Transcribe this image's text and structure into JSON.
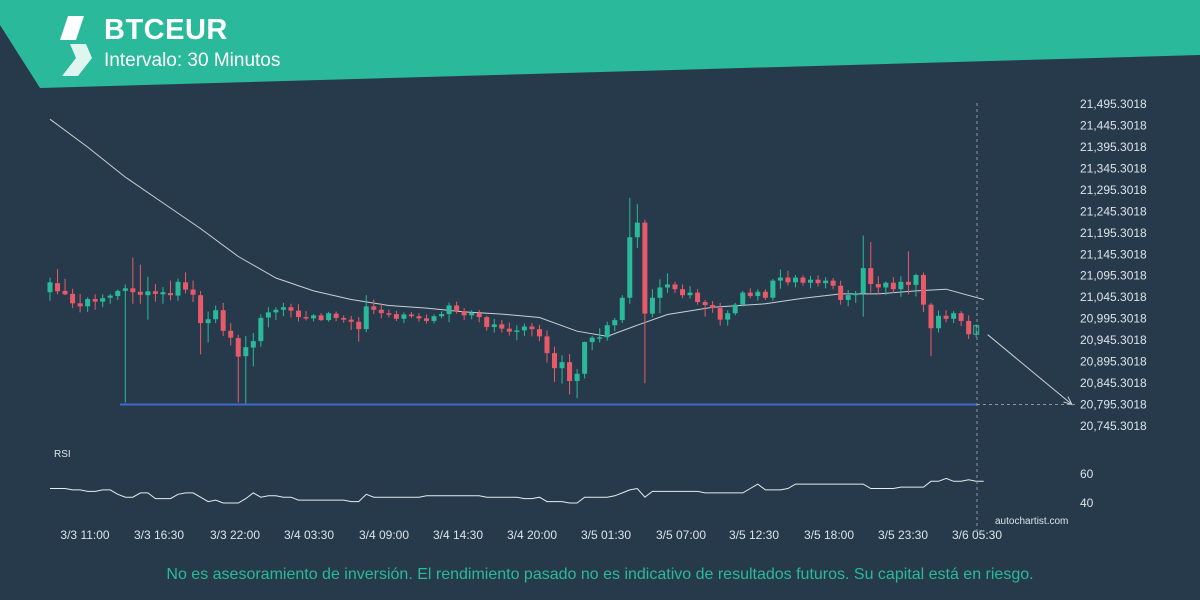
{
  "header": {
    "title": "BTCEUR",
    "subtitle": "Intervalo: 30 Minutos"
  },
  "colors": {
    "background": "#273a4b",
    "banner": "#2ab99a",
    "bullish": "#2ab99a",
    "bearish": "#e85a6a",
    "support_line": "#3f6bcf",
    "moving_average": "#c8d0d8",
    "text": "#dbe3ea"
  },
  "chart_data": {
    "type": "candlestick",
    "instrument": "BTCEUR",
    "y_ticks": [
      "21,495.3018",
      "21,445.3018",
      "21,395.3018",
      "21,345.3018",
      "21,295.3018",
      "21,245.3018",
      "21,195.3018",
      "21,145.3018",
      "21,095.3018",
      "21,045.3018",
      "20,995.3018",
      "20,945.3018",
      "20,895.3018",
      "20,845.3018",
      "20,795.3018",
      "20,745.3018"
    ],
    "ylim": [
      20735,
      21505
    ],
    "x_ticks": [
      "3/3 11:00",
      "3/3 16:30",
      "3/3 22:00",
      "3/4 03:30",
      "3/4 09:00",
      "3/4 14:30",
      "3/4 20:00",
      "3/5 01:30",
      "3/5 07:00",
      "3/5 12:30",
      "3/5 18:00",
      "3/5 23:30",
      "3/6 05:30"
    ],
    "support_level": 20795.3,
    "candles": [
      {
        "o": 21057,
        "h": 21091,
        "l": 21037,
        "c": 21080
      },
      {
        "o": 21078,
        "h": 21111,
        "l": 21052,
        "c": 21059
      },
      {
        "o": 21060,
        "h": 21088,
        "l": 21050,
        "c": 21052
      },
      {
        "o": 21053,
        "h": 21065,
        "l": 21020,
        "c": 21031
      },
      {
        "o": 21031,
        "h": 21053,
        "l": 21010,
        "c": 21024
      },
      {
        "o": 21024,
        "h": 21045,
        "l": 21011,
        "c": 21041
      },
      {
        "o": 21041,
        "h": 21052,
        "l": 21016,
        "c": 21035
      },
      {
        "o": 21035,
        "h": 21052,
        "l": 21022,
        "c": 21043
      },
      {
        "o": 21044,
        "h": 21053,
        "l": 21030,
        "c": 21049
      },
      {
        "o": 21048,
        "h": 21063,
        "l": 21039,
        "c": 21060
      },
      {
        "o": 21060,
        "h": 21075,
        "l": 20800,
        "c": 21066
      },
      {
        "o": 21066,
        "h": 21138,
        "l": 21030,
        "c": 21057
      },
      {
        "o": 21058,
        "h": 21121,
        "l": 21030,
        "c": 21051
      },
      {
        "o": 21050,
        "h": 21093,
        "l": 20993,
        "c": 21059
      },
      {
        "o": 21059,
        "h": 21076,
        "l": 21035,
        "c": 21053
      },
      {
        "o": 21052,
        "h": 21069,
        "l": 21030,
        "c": 21057
      },
      {
        "o": 21055,
        "h": 21084,
        "l": 21038,
        "c": 21050
      },
      {
        "o": 21049,
        "h": 21089,
        "l": 21037,
        "c": 21081
      },
      {
        "o": 21080,
        "h": 21103,
        "l": 21054,
        "c": 21063
      },
      {
        "o": 21063,
        "h": 21084,
        "l": 21034,
        "c": 21051
      },
      {
        "o": 21050,
        "h": 21060,
        "l": 20912,
        "c": 20985
      },
      {
        "o": 20985,
        "h": 21012,
        "l": 20940,
        "c": 20994
      },
      {
        "o": 20994,
        "h": 21026,
        "l": 20985,
        "c": 21015
      },
      {
        "o": 21015,
        "h": 21032,
        "l": 20955,
        "c": 20967
      },
      {
        "o": 20967,
        "h": 20985,
        "l": 20933,
        "c": 20951
      },
      {
        "o": 20950,
        "h": 20958,
        "l": 20800,
        "c": 20907
      },
      {
        "o": 20908,
        "h": 20955,
        "l": 20795,
        "c": 20929
      },
      {
        "o": 20928,
        "h": 20962,
        "l": 20884,
        "c": 20943
      },
      {
        "o": 20943,
        "h": 21005,
        "l": 20930,
        "c": 20997
      },
      {
        "o": 20998,
        "h": 21022,
        "l": 20975,
        "c": 21010
      },
      {
        "o": 21010,
        "h": 21022,
        "l": 20992,
        "c": 21016
      },
      {
        "o": 21016,
        "h": 21032,
        "l": 21001,
        "c": 21022
      },
      {
        "o": 21022,
        "h": 21030,
        "l": 20998,
        "c": 21014
      },
      {
        "o": 21014,
        "h": 21029,
        "l": 20989,
        "c": 20999
      },
      {
        "o": 20999,
        "h": 21013,
        "l": 20991,
        "c": 20996
      },
      {
        "o": 20996,
        "h": 21006,
        "l": 20989,
        "c": 21003
      },
      {
        "o": 21003,
        "h": 21008,
        "l": 20990,
        "c": 20992
      },
      {
        "o": 20992,
        "h": 21011,
        "l": 20988,
        "c": 21008
      },
      {
        "o": 21007,
        "h": 21012,
        "l": 20989,
        "c": 20997
      },
      {
        "o": 20997,
        "h": 21003,
        "l": 20986,
        "c": 20993
      },
      {
        "o": 20993,
        "h": 21002,
        "l": 20969,
        "c": 20988
      },
      {
        "o": 20988,
        "h": 20999,
        "l": 20942,
        "c": 20971
      },
      {
        "o": 20971,
        "h": 21050,
        "l": 20964,
        "c": 21024
      },
      {
        "o": 21024,
        "h": 21040,
        "l": 21006,
        "c": 21016
      },
      {
        "o": 21016,
        "h": 21031,
        "l": 20996,
        "c": 21008
      },
      {
        "o": 21008,
        "h": 21016,
        "l": 20998,
        "c": 21006
      },
      {
        "o": 21006,
        "h": 21014,
        "l": 20990,
        "c": 20995
      },
      {
        "o": 20995,
        "h": 21010,
        "l": 20985,
        "c": 21005
      },
      {
        "o": 21005,
        "h": 21011,
        "l": 20997,
        "c": 21001
      },
      {
        "o": 21001,
        "h": 21008,
        "l": 20989,
        "c": 20996
      },
      {
        "o": 20996,
        "h": 21005,
        "l": 20984,
        "c": 20990
      },
      {
        "o": 20990,
        "h": 21005,
        "l": 20984,
        "c": 21001
      },
      {
        "o": 21001,
        "h": 21012,
        "l": 20996,
        "c": 21006
      },
      {
        "o": 21006,
        "h": 21033,
        "l": 20987,
        "c": 21026
      },
      {
        "o": 21026,
        "h": 21035,
        "l": 21007,
        "c": 21013
      },
      {
        "o": 21013,
        "h": 21020,
        "l": 20992,
        "c": 21003
      },
      {
        "o": 21003,
        "h": 21015,
        "l": 20994,
        "c": 21009
      },
      {
        "o": 21008,
        "h": 21016,
        "l": 20987,
        "c": 20999
      },
      {
        "o": 20999,
        "h": 21002,
        "l": 20967,
        "c": 20976
      },
      {
        "o": 20976,
        "h": 20995,
        "l": 20963,
        "c": 20982
      },
      {
        "o": 20982,
        "h": 20992,
        "l": 20963,
        "c": 20972
      },
      {
        "o": 20972,
        "h": 20986,
        "l": 20956,
        "c": 20965
      },
      {
        "o": 20965,
        "h": 20980,
        "l": 20945,
        "c": 20968
      },
      {
        "o": 20968,
        "h": 20984,
        "l": 20955,
        "c": 20977
      },
      {
        "o": 20977,
        "h": 20985,
        "l": 20954,
        "c": 20971
      },
      {
        "o": 20971,
        "h": 20981,
        "l": 20943,
        "c": 20954
      },
      {
        "o": 20954,
        "h": 20968,
        "l": 20893,
        "c": 20915
      },
      {
        "o": 20915,
        "h": 20930,
        "l": 20848,
        "c": 20880
      },
      {
        "o": 20880,
        "h": 20910,
        "l": 20844,
        "c": 20894
      },
      {
        "o": 20894,
        "h": 20913,
        "l": 20819,
        "c": 20850
      },
      {
        "o": 20850,
        "h": 20878,
        "l": 20810,
        "c": 20867
      },
      {
        "o": 20867,
        "h": 20942,
        "l": 20856,
        "c": 20941
      },
      {
        "o": 20941,
        "h": 20955,
        "l": 20922,
        "c": 20951
      },
      {
        "o": 20951,
        "h": 20973,
        "l": 20940,
        "c": 20952
      },
      {
        "o": 20952,
        "h": 20988,
        "l": 20944,
        "c": 20980
      },
      {
        "o": 20980,
        "h": 20997,
        "l": 20966,
        "c": 20992
      },
      {
        "o": 20992,
        "h": 21050,
        "l": 20985,
        "c": 21044
      },
      {
        "o": 21044,
        "h": 21277,
        "l": 21030,
        "c": 21185
      },
      {
        "o": 21185,
        "h": 21262,
        "l": 21160,
        "c": 21219
      },
      {
        "o": 21219,
        "h": 21226,
        "l": 20845,
        "c": 21007
      },
      {
        "o": 21007,
        "h": 21064,
        "l": 20998,
        "c": 21044
      },
      {
        "o": 21044,
        "h": 21087,
        "l": 21008,
        "c": 21068
      },
      {
        "o": 21068,
        "h": 21101,
        "l": 21055,
        "c": 21075
      },
      {
        "o": 21075,
        "h": 21081,
        "l": 21055,
        "c": 21064
      },
      {
        "o": 21064,
        "h": 21075,
        "l": 21043,
        "c": 21050
      },
      {
        "o": 21050,
        "h": 21071,
        "l": 21042,
        "c": 21056
      },
      {
        "o": 21056,
        "h": 21064,
        "l": 21028,
        "c": 21034
      },
      {
        "o": 21034,
        "h": 21039,
        "l": 21000,
        "c": 21027
      },
      {
        "o": 21027,
        "h": 21036,
        "l": 21009,
        "c": 21020
      },
      {
        "o": 21020,
        "h": 21032,
        "l": 20979,
        "c": 20993
      },
      {
        "o": 20993,
        "h": 21015,
        "l": 20979,
        "c": 21008
      },
      {
        "o": 21008,
        "h": 21032,
        "l": 21003,
        "c": 21028
      },
      {
        "o": 21028,
        "h": 21060,
        "l": 21024,
        "c": 21056
      },
      {
        "o": 21056,
        "h": 21066,
        "l": 21043,
        "c": 21048
      },
      {
        "o": 21048,
        "h": 21064,
        "l": 21037,
        "c": 21058
      },
      {
        "o": 21058,
        "h": 21064,
        "l": 21039,
        "c": 21044
      },
      {
        "o": 21044,
        "h": 21088,
        "l": 21037,
        "c": 21084
      },
      {
        "o": 21084,
        "h": 21110,
        "l": 21065,
        "c": 21091
      },
      {
        "o": 21091,
        "h": 21107,
        "l": 21073,
        "c": 21080
      },
      {
        "o": 21080,
        "h": 21097,
        "l": 21068,
        "c": 21091
      },
      {
        "o": 21091,
        "h": 21096,
        "l": 21072,
        "c": 21079
      },
      {
        "o": 21079,
        "h": 21095,
        "l": 21066,
        "c": 21086
      },
      {
        "o": 21086,
        "h": 21096,
        "l": 21070,
        "c": 21078
      },
      {
        "o": 21078,
        "h": 21092,
        "l": 21066,
        "c": 21084
      },
      {
        "o": 21084,
        "h": 21090,
        "l": 21064,
        "c": 21072
      },
      {
        "o": 21072,
        "h": 21084,
        "l": 21028,
        "c": 21039
      },
      {
        "o": 21039,
        "h": 21062,
        "l": 21024,
        "c": 21050
      },
      {
        "o": 21050,
        "h": 21060,
        "l": 21032,
        "c": 21054
      },
      {
        "o": 21054,
        "h": 21189,
        "l": 21000,
        "c": 21113
      },
      {
        "o": 21113,
        "h": 21174,
        "l": 21056,
        "c": 21076
      },
      {
        "o": 21076,
        "h": 21094,
        "l": 21052,
        "c": 21068
      },
      {
        "o": 21068,
        "h": 21082,
        "l": 21050,
        "c": 21079
      },
      {
        "o": 21079,
        "h": 21092,
        "l": 21055,
        "c": 21064
      },
      {
        "o": 21064,
        "h": 21094,
        "l": 21046,
        "c": 21081
      },
      {
        "o": 21081,
        "h": 21152,
        "l": 21052,
        "c": 21074
      },
      {
        "o": 21074,
        "h": 21100,
        "l": 21047,
        "c": 21097
      },
      {
        "o": 21097,
        "h": 21103,
        "l": 21011,
        "c": 21028
      },
      {
        "o": 21028,
        "h": 21032,
        "l": 20908,
        "c": 20973
      },
      {
        "o": 20973,
        "h": 21014,
        "l": 20963,
        "c": 21002
      },
      {
        "o": 21002,
        "h": 21015,
        "l": 20987,
        "c": 20995
      },
      {
        "o": 20995,
        "h": 21013,
        "l": 20985,
        "c": 21008
      },
      {
        "o": 21008,
        "h": 21013,
        "l": 20978,
        "c": 20990
      },
      {
        "o": 20990,
        "h": 21003,
        "l": 20948,
        "c": 20959
      },
      {
        "o": 20959,
        "h": 20982,
        "l": 20952,
        "c": 20979
      }
    ],
    "moving_average": [
      {
        "i": 0,
        "v": 21460
      },
      {
        "i": 5,
        "v": 21395
      },
      {
        "i": 10,
        "v": 21325
      },
      {
        "i": 15,
        "v": 21265
      },
      {
        "i": 20,
        "v": 21205
      },
      {
        "i": 25,
        "v": 21140
      },
      {
        "i": 30,
        "v": 21090
      },
      {
        "i": 35,
        "v": 21060
      },
      {
        "i": 40,
        "v": 21040
      },
      {
        "i": 45,
        "v": 21026
      },
      {
        "i": 50,
        "v": 21020
      },
      {
        "i": 55,
        "v": 21011
      },
      {
        "i": 60,
        "v": 21006
      },
      {
        "i": 65,
        "v": 20998
      },
      {
        "i": 70,
        "v": 20966
      },
      {
        "i": 74,
        "v": 20954
      },
      {
        "i": 78,
        "v": 20980
      },
      {
        "i": 82,
        "v": 21005
      },
      {
        "i": 88,
        "v": 21022
      },
      {
        "i": 95,
        "v": 21030
      },
      {
        "i": 100,
        "v": 21043
      },
      {
        "i": 105,
        "v": 21053
      },
      {
        "i": 110,
        "v": 21053
      },
      {
        "i": 115,
        "v": 21060
      },
      {
        "i": 119,
        "v": 21064
      },
      {
        "i": 124,
        "v": 21040
      }
    ],
    "projection": {
      "from_i": 124,
      "from_v": 20958,
      "to_v": 20795.3
    },
    "rsi": {
      "label": "RSI",
      "ticks": [
        60,
        40
      ],
      "ylim": [
        30,
        70
      ],
      "values": [
        50,
        50,
        50,
        49,
        49,
        48,
        48,
        49,
        49,
        46,
        44,
        44,
        47,
        47,
        43,
        43,
        43,
        46,
        47,
        47,
        44,
        41,
        42,
        40,
        40,
        40,
        43,
        47,
        44,
        45,
        45,
        44,
        44,
        42,
        42,
        42,
        42,
        42,
        42,
        42,
        41,
        41,
        46,
        44,
        44,
        44,
        44,
        44,
        44,
        44,
        45,
        45,
        45,
        45,
        45,
        45,
        45,
        45,
        44,
        44,
        44,
        44,
        44,
        43,
        43,
        44,
        41,
        41,
        41,
        40,
        40,
        44,
        44,
        44,
        44,
        45,
        47,
        49,
        50,
        44,
        48,
        48,
        48,
        48,
        48,
        48,
        48,
        47,
        47,
        47,
        47,
        47,
        47,
        50,
        53,
        49,
        49,
        49,
        50,
        53,
        53,
        53,
        53,
        53,
        53,
        53,
        53,
        53,
        53,
        50,
        50,
        50,
        50,
        51,
        51,
        51,
        51,
        55,
        55,
        57,
        55,
        55,
        56,
        55,
        55
      ]
    }
  },
  "watermark": "autochartist.com",
  "disclaimer": "No es asesoramiento de inversión. El rendimiento pasado no es indicativo de resultados futuros. Su capital está en riesgo."
}
